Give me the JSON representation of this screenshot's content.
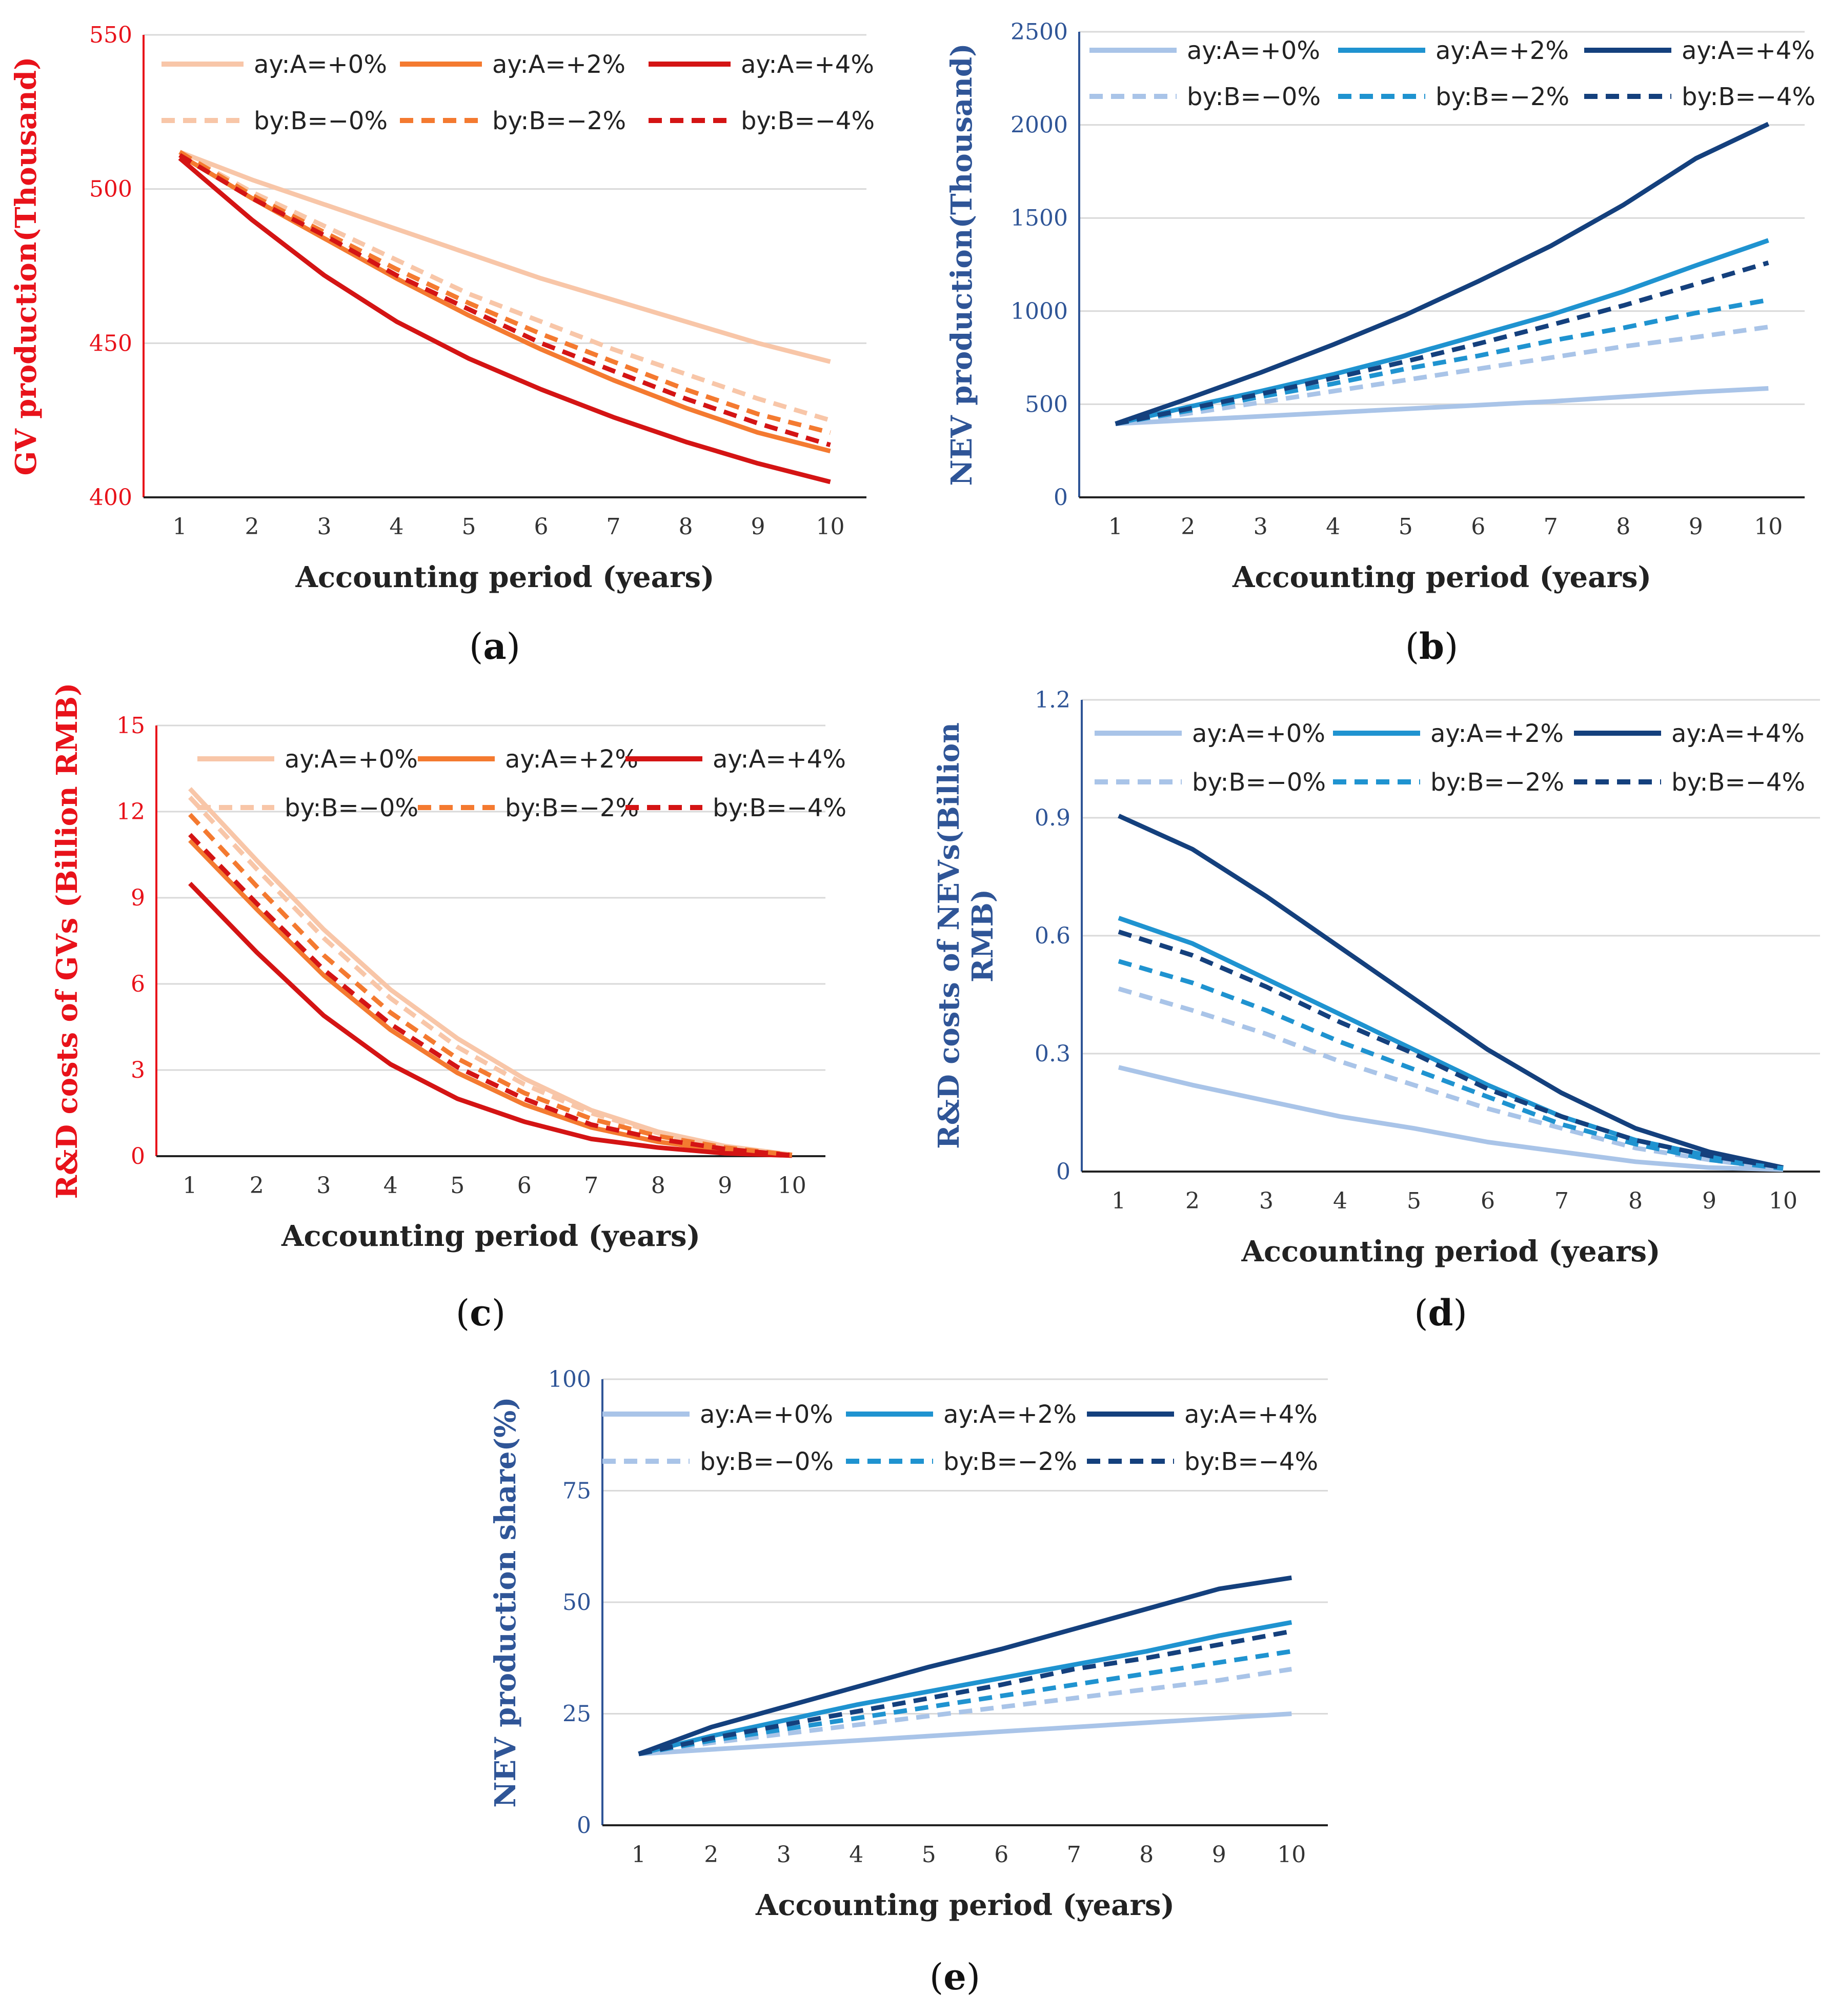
{
  "colors": {
    "red_axis": "#e8121a",
    "blue_axis": "#2f5597",
    "grid": "#d9d9d9"
  },
  "chart_data": [
    {
      "id": "a",
      "panel_label": "a",
      "type": "line",
      "title": "",
      "xlabel": "Accounting period (years)",
      "ylabel": "GV production(Thousand)",
      "axis_color": "#e8121a",
      "x": [
        1,
        2,
        3,
        4,
        5,
        6,
        7,
        8,
        9,
        10
      ],
      "ylim": [
        400,
        550
      ],
      "yticks": [
        400,
        450,
        500,
        550
      ],
      "grid": true,
      "legend_position": "top",
      "series": [
        {
          "name": "ay:A=+0%",
          "color": "#f8c6a8",
          "style": "solid",
          "values": [
            512,
            503,
            495,
            487,
            479,
            471,
            464,
            457,
            450,
            444
          ]
        },
        {
          "name": "ay:A=+2%",
          "color": "#f47a30",
          "style": "solid",
          "values": [
            511,
            497,
            484,
            471,
            459,
            448,
            438,
            429,
            421,
            415
          ]
        },
        {
          "name": "ay:A=+4%",
          "color": "#d41414",
          "style": "solid",
          "values": [
            510,
            490,
            472,
            457,
            445,
            435,
            426,
            418,
            411,
            405
          ]
        },
        {
          "name": "by:B=−0%",
          "color": "#f8c6a8",
          "style": "dashed",
          "values": [
            512,
            499,
            488,
            477,
            466,
            457,
            448,
            440,
            432,
            425
          ]
        },
        {
          "name": "by:B=−2%",
          "color": "#f47a30",
          "style": "dashed",
          "values": [
            512,
            498,
            486,
            474,
            463,
            453,
            444,
            435,
            427,
            421
          ]
        },
        {
          "name": "by:B=−4%",
          "color": "#d41414",
          "style": "dashed",
          "values": [
            511,
            497,
            485,
            472,
            461,
            450,
            441,
            432,
            424,
            417
          ]
        }
      ]
    },
    {
      "id": "b",
      "panel_label": "b",
      "type": "line",
      "title": "",
      "xlabel": "Accounting period (years)",
      "ylabel": "NEV production(Thousand)",
      "axis_color": "#2f5597",
      "x": [
        1,
        2,
        3,
        4,
        5,
        6,
        7,
        8,
        9,
        10
      ],
      "ylim": [
        0,
        2500
      ],
      "yticks": [
        0,
        500,
        1000,
        1500,
        2000,
        2500
      ],
      "grid": true,
      "legend_position": "top",
      "series": [
        {
          "name": "ay:A=+0%",
          "color": "#a9c4e8",
          "style": "solid",
          "values": [
            395,
            415,
            435,
            455,
            475,
            495,
            515,
            540,
            565,
            585
          ]
        },
        {
          "name": "ay:A=+2%",
          "color": "#1f93d0",
          "style": "solid",
          "values": [
            395,
            485,
            570,
            660,
            760,
            870,
            980,
            1105,
            1245,
            1380
          ]
        },
        {
          "name": "ay:A=+4%",
          "color": "#14407d",
          "style": "solid",
          "values": [
            395,
            530,
            670,
            820,
            980,
            1160,
            1350,
            1570,
            1820,
            2005
          ]
        },
        {
          "name": "by:B=−0%",
          "color": "#a9c4e8",
          "style": "dashed",
          "values": [
            395,
            450,
            510,
            570,
            630,
            690,
            750,
            810,
            860,
            915
          ]
        },
        {
          "name": "by:B=−2%",
          "color": "#1f93d0",
          "style": "dashed",
          "values": [
            395,
            465,
            540,
            610,
            690,
            760,
            840,
            910,
            990,
            1060
          ]
        },
        {
          "name": "by:B=−4%",
          "color": "#14407d",
          "style": "dashed",
          "values": [
            395,
            475,
            555,
            640,
            730,
            825,
            925,
            1030,
            1145,
            1260
          ]
        }
      ]
    },
    {
      "id": "c",
      "panel_label": "c",
      "type": "line",
      "title": "",
      "xlabel": "Accounting period (years)",
      "ylabel": "R&D costs of GVs (Billion RMB)",
      "axis_color": "#e8121a",
      "x": [
        1,
        2,
        3,
        4,
        5,
        6,
        7,
        8,
        9,
        10
      ],
      "ylim": [
        0,
        15
      ],
      "yticks": [
        0,
        3,
        6,
        9,
        12,
        15
      ],
      "grid": true,
      "legend_position": "top",
      "series": [
        {
          "name": "ay:A=+0%",
          "color": "#f8c6a8",
          "style": "solid",
          "values": [
            12.8,
            10.3,
            7.9,
            5.8,
            4.1,
            2.7,
            1.6,
            0.85,
            0.35,
            0.05
          ]
        },
        {
          "name": "ay:A=+2%",
          "color": "#f47a30",
          "style": "solid",
          "values": [
            11.0,
            8.6,
            6.3,
            4.4,
            2.9,
            1.8,
            1.0,
            0.5,
            0.2,
            0.03
          ]
        },
        {
          "name": "ay:A=+4%",
          "color": "#d41414",
          "style": "solid",
          "values": [
            9.5,
            7.1,
            4.9,
            3.2,
            2.0,
            1.2,
            0.6,
            0.3,
            0.1,
            0.02
          ]
        },
        {
          "name": "by:B=−0%",
          "color": "#f8c6a8",
          "style": "dashed",
          "values": [
            12.5,
            10.0,
            7.6,
            5.5,
            3.8,
            2.5,
            1.5,
            0.8,
            0.3,
            0.05
          ]
        },
        {
          "name": "by:B=−2%",
          "color": "#f47a30",
          "style": "dashed",
          "values": [
            11.9,
            9.4,
            7.0,
            5.0,
            3.4,
            2.2,
            1.3,
            0.7,
            0.3,
            0.04
          ]
        },
        {
          "name": "by:B=−4%",
          "color": "#d41414",
          "style": "dashed",
          "values": [
            11.2,
            8.8,
            6.5,
            4.6,
            3.1,
            2.0,
            1.1,
            0.6,
            0.25,
            0.03
          ]
        }
      ]
    },
    {
      "id": "d",
      "panel_label": "d",
      "type": "line",
      "title": "",
      "xlabel": "Accounting period (years)",
      "ylabel": "R&D costs of NEVs(Billion RMB)",
      "ylabel_line1": "R&D costs of NEVs(Billion",
      "ylabel_line2": "RMB)",
      "axis_color": "#2f5597",
      "x": [
        1,
        2,
        3,
        4,
        5,
        6,
        7,
        8,
        9,
        10
      ],
      "ylim": [
        0,
        1.2
      ],
      "yticks": [
        0,
        0.3,
        0.6,
        0.9,
        1.2
      ],
      "grid": true,
      "legend_position": "top",
      "series": [
        {
          "name": "ay:A=+0%",
          "color": "#a9c4e8",
          "style": "solid",
          "values": [
            0.265,
            0.22,
            0.18,
            0.14,
            0.11,
            0.075,
            0.05,
            0.025,
            0.01,
            0.005
          ]
        },
        {
          "name": "ay:A=+2%",
          "color": "#1f93d0",
          "style": "solid",
          "values": [
            0.645,
            0.58,
            0.49,
            0.4,
            0.31,
            0.22,
            0.14,
            0.08,
            0.04,
            0.01
          ]
        },
        {
          "name": "ay:A=+4%",
          "color": "#14407d",
          "style": "solid",
          "values": [
            0.905,
            0.82,
            0.7,
            0.57,
            0.44,
            0.31,
            0.2,
            0.11,
            0.05,
            0.01
          ]
        },
        {
          "name": "by:B=−0%",
          "color": "#a9c4e8",
          "style": "dashed",
          "values": [
            0.465,
            0.41,
            0.35,
            0.28,
            0.22,
            0.16,
            0.11,
            0.06,
            0.03,
            0.005
          ]
        },
        {
          "name": "by:B=−2%",
          "color": "#1f93d0",
          "style": "dashed",
          "values": [
            0.535,
            0.48,
            0.41,
            0.33,
            0.26,
            0.19,
            0.12,
            0.07,
            0.03,
            0.008
          ]
        },
        {
          "name": "by:B=−4%",
          "color": "#14407d",
          "style": "dashed",
          "values": [
            0.61,
            0.55,
            0.47,
            0.38,
            0.3,
            0.21,
            0.14,
            0.08,
            0.04,
            0.01
          ]
        }
      ]
    },
    {
      "id": "e",
      "panel_label": "e",
      "type": "line",
      "title": "",
      "xlabel": "Accounting period (years)",
      "ylabel": "NEV production share(%)",
      "axis_color": "#2f5597",
      "x": [
        1,
        2,
        3,
        4,
        5,
        6,
        7,
        8,
        9,
        10
      ],
      "ylim": [
        0,
        100
      ],
      "yticks": [
        0,
        25,
        50,
        75,
        100
      ],
      "grid": true,
      "legend_position": "top",
      "series": [
        {
          "name": "ay:A=+0%",
          "color": "#a9c4e8",
          "style": "solid",
          "values": [
            16,
            17,
            18,
            19,
            20,
            21,
            22,
            23,
            24,
            25
          ]
        },
        {
          "name": "ay:A=+2%",
          "color": "#1f93d0",
          "style": "solid",
          "values": [
            16,
            20,
            23.5,
            27,
            30,
            33,
            36,
            39,
            42.5,
            45.5
          ]
        },
        {
          "name": "ay:A=+4%",
          "color": "#14407d",
          "style": "solid",
          "values": [
            16,
            22,
            26.5,
            31,
            35.5,
            39.5,
            44,
            48.5,
            53,
            55.5
          ]
        },
        {
          "name": "by:B=−0%",
          "color": "#a9c4e8",
          "style": "dashed",
          "values": [
            16,
            18.5,
            20.5,
            22.5,
            24.5,
            26.5,
            28.5,
            30.5,
            32.5,
            35
          ]
        },
        {
          "name": "by:B=−2%",
          "color": "#1f93d0",
          "style": "dashed",
          "values": [
            16,
            19,
            21.5,
            24,
            26.5,
            29,
            31.5,
            34,
            36.5,
            39
          ]
        },
        {
          "name": "by:B=−4%",
          "color": "#14407d",
          "style": "dashed",
          "values": [
            16,
            19.5,
            22.5,
            25.5,
            28.5,
            31.5,
            35,
            37.5,
            40.5,
            43.5
          ]
        }
      ]
    }
  ]
}
